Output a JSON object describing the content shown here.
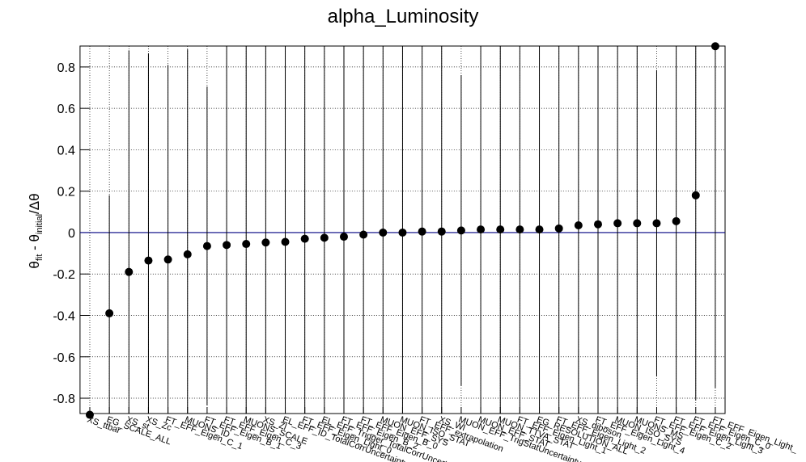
{
  "chart_data": {
    "type": "errorpoint",
    "title": "alpha_Luminosity",
    "ylabel": [
      "θ",
      "fit",
      " - θ",
      "initial",
      "/Δθ"
    ],
    "categories": [
      "XS_ttbar",
      "EG_SCALE_ALL",
      "XS_st",
      "XS_Zc",
      "FT_EFF_Eigen_C_1",
      "MUONS_ID",
      "FT_EFF_Eigen_B_1",
      "FT_EFF_Eigen_C_3",
      "MUONS_SCALE",
      "XS_Zl",
      "EL_EFF_ID_TotalCorrUncertainty",
      "FT_EFF_Eigen_Light_0",
      "EL_EFF_Trigger_TotalCorrUncertainty",
      "FT_EFF_Eigen_B_2",
      "FT_EFF_Eigen_B_0",
      "MUON_EFF_SYS",
      "MUON_ISO_STAT",
      "FT_EFF_extrapolation",
      "XS_Wl",
      "MUON_EFF_TrigStatUncertainty",
      "MUON_EFF_STAT",
      "MUON_TTVA_STAT",
      "FT_EFF_Eigen_Light_1",
      "EG_RESOLUTION_ALL",
      "FT_EFF_Eigen_Light_2",
      "XS_diboson",
      "FT_EFF_Eigen_Light_4",
      "MUON_ISO_SYS",
      "MUONS_MS",
      "FT_EFF_Eigen_C_2",
      "FT_EFF_Eigen_Light_3",
      "FT_EFF_Eigen_C_0",
      "FT_EFF_Eigen_Light_"
    ],
    "values": [
      -0.88,
      -0.39,
      -0.19,
      -0.135,
      -0.13,
      -0.105,
      -0.065,
      -0.06,
      -0.055,
      -0.048,
      -0.045,
      -0.03,
      -0.025,
      -0.02,
      -0.01,
      0.0,
      0.0,
      0.005,
      0.005,
      0.01,
      0.015,
      0.015,
      0.015,
      0.015,
      0.02,
      0.035,
      0.04,
      0.045,
      0.045,
      0.045,
      0.055,
      0.18,
      0.9
    ],
    "errors": [
      0,
      0.57,
      1.07,
      1.0,
      0.94,
      0.99,
      0.77,
      1,
      1,
      1,
      1,
      1,
      1,
      1,
      1,
      1,
      1,
      1,
      1,
      0.75,
      1,
      1,
      1,
      1,
      1,
      1,
      1,
      1,
      1,
      0.74,
      1,
      0.99,
      1.65
    ],
    "color": "#000000",
    "zero_line_color": "#000080",
    "ylim": [
      -0.874,
      0.901
    ],
    "yticks": [
      -0.8,
      -0.6,
      -0.4,
      -0.2,
      0,
      0.2,
      0.4,
      0.6,
      0.8
    ],
    "grid": true
  }
}
